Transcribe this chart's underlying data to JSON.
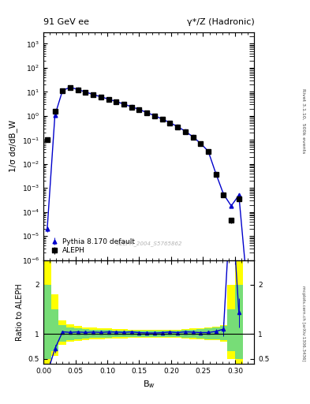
{
  "title_left": "91 GeV ee",
  "title_right": "γ*/Z (Hadronic)",
  "ylabel_main": "1/σ dσ/dB_W",
  "ylabel_ratio": "Ratio to ALEPH",
  "xlabel": "B$_w$",
  "right_label_top": "Rivet 3.1.10,  500k events",
  "right_label_bottom": "mcplots.cern.ch [arXiv:1306.3436]",
  "watermark": "ALEPH_2004_S5765862",
  "aleph_x": [
    0.006,
    0.018,
    0.03,
    0.042,
    0.054,
    0.066,
    0.078,
    0.09,
    0.102,
    0.114,
    0.126,
    0.138,
    0.15,
    0.162,
    0.174,
    0.186,
    0.198,
    0.21,
    0.222,
    0.234,
    0.246,
    0.258,
    0.27,
    0.282,
    0.294,
    0.306
  ],
  "aleph_y": [
    0.1,
    1.5,
    11.0,
    15.0,
    12.0,
    9.5,
    7.5,
    6.0,
    4.8,
    3.8,
    3.0,
    2.3,
    1.8,
    1.35,
    1.0,
    0.72,
    0.5,
    0.35,
    0.22,
    0.13,
    0.07,
    0.033,
    0.0038,
    0.0005,
    4.5e-05,
    0.00035
  ],
  "aleph_yerr": [
    0.015,
    0.12,
    0.5,
    0.5,
    0.4,
    0.3,
    0.25,
    0.2,
    0.15,
    0.12,
    0.1,
    0.08,
    0.06,
    0.05,
    0.04,
    0.03,
    0.02,
    0.015,
    0.01,
    0.007,
    0.005,
    0.003,
    0.0004,
    8e-05,
    1e-05,
    5e-05
  ],
  "pythia_x": [
    0.006,
    0.018,
    0.03,
    0.042,
    0.054,
    0.066,
    0.078,
    0.09,
    0.102,
    0.114,
    0.126,
    0.138,
    0.15,
    0.162,
    0.174,
    0.186,
    0.198,
    0.21,
    0.222,
    0.234,
    0.246,
    0.258,
    0.27,
    0.282,
    0.294,
    0.306,
    0.318
  ],
  "pythia_y": [
    2e-05,
    1.05,
    11.5,
    15.5,
    12.5,
    9.8,
    7.8,
    6.2,
    5.0,
    3.95,
    3.1,
    2.4,
    1.85,
    1.38,
    1.02,
    0.74,
    0.52,
    0.36,
    0.23,
    0.135,
    0.072,
    0.034,
    0.004,
    0.00055,
    0.00018,
    0.0005,
    1.5e-07
  ],
  "pythia_yerr": [
    5e-06,
    0.05,
    0.3,
    0.3,
    0.25,
    0.2,
    0.15,
    0.12,
    0.1,
    0.08,
    0.07,
    0.05,
    0.04,
    0.03,
    0.025,
    0.02,
    0.015,
    0.01,
    0.008,
    0.006,
    0.004,
    0.002,
    0.0003,
    6e-05,
    2e-05,
    7e-05,
    5e-08
  ],
  "ratio_x": [
    0.006,
    0.018,
    0.03,
    0.042,
    0.054,
    0.066,
    0.078,
    0.09,
    0.102,
    0.114,
    0.126,
    0.138,
    0.15,
    0.162,
    0.174,
    0.186,
    0.198,
    0.21,
    0.222,
    0.234,
    0.246,
    0.258,
    0.27,
    0.282,
    0.294,
    0.306
  ],
  "ratio_y": [
    0.2,
    0.7,
    1.045,
    1.033,
    1.042,
    1.032,
    1.04,
    1.033,
    1.042,
    1.039,
    1.033,
    1.043,
    1.028,
    1.022,
    1.02,
    1.028,
    1.04,
    1.029,
    1.045,
    1.038,
    1.029,
    1.03,
    1.053,
    1.1,
    3.9,
    1.43
  ],
  "ratio_yerr": [
    0.05,
    0.08,
    0.015,
    0.012,
    0.012,
    0.01,
    0.01,
    0.01,
    0.01,
    0.01,
    0.01,
    0.01,
    0.01,
    0.01,
    0.01,
    0.01,
    0.01,
    0.01,
    0.01,
    0.012,
    0.015,
    0.015,
    0.05,
    0.15,
    0.5,
    0.3
  ],
  "band_x_lo": [
    0.0,
    0.012,
    0.024,
    0.036,
    0.048,
    0.06,
    0.072,
    0.084,
    0.096,
    0.108,
    0.12,
    0.132,
    0.144,
    0.156,
    0.168,
    0.18,
    0.192,
    0.204,
    0.216,
    0.228,
    0.24,
    0.252,
    0.264,
    0.276,
    0.288,
    0.3
  ],
  "band_x_hi": [
    0.012,
    0.024,
    0.036,
    0.048,
    0.06,
    0.072,
    0.084,
    0.096,
    0.108,
    0.12,
    0.132,
    0.144,
    0.156,
    0.168,
    0.18,
    0.192,
    0.204,
    0.216,
    0.228,
    0.24,
    0.252,
    0.264,
    0.276,
    0.288,
    0.3,
    0.312
  ],
  "band_yellow_lo": [
    0.35,
    0.55,
    0.78,
    0.84,
    0.86,
    0.88,
    0.89,
    0.9,
    0.91,
    0.91,
    0.91,
    0.92,
    0.92,
    0.92,
    0.92,
    0.92,
    0.92,
    0.92,
    0.91,
    0.9,
    0.89,
    0.88,
    0.87,
    0.85,
    0.5,
    0.35
  ],
  "band_yellow_hi": [
    2.5,
    1.8,
    1.28,
    1.2,
    1.17,
    1.14,
    1.13,
    1.12,
    1.11,
    1.1,
    1.1,
    1.09,
    1.09,
    1.09,
    1.09,
    1.09,
    1.09,
    1.09,
    1.1,
    1.11,
    1.12,
    1.13,
    1.15,
    1.18,
    2.0,
    2.5
  ],
  "band_green_lo": [
    0.5,
    0.65,
    0.84,
    0.88,
    0.9,
    0.91,
    0.92,
    0.93,
    0.93,
    0.94,
    0.94,
    0.94,
    0.94,
    0.94,
    0.94,
    0.94,
    0.94,
    0.94,
    0.93,
    0.92,
    0.91,
    0.9,
    0.89,
    0.87,
    0.65,
    0.5
  ],
  "band_green_hi": [
    2.0,
    1.5,
    1.18,
    1.14,
    1.12,
    1.1,
    1.09,
    1.08,
    1.08,
    1.07,
    1.07,
    1.07,
    1.07,
    1.07,
    1.07,
    1.07,
    1.07,
    1.07,
    1.08,
    1.09,
    1.1,
    1.11,
    1.13,
    1.16,
    1.5,
    2.0
  ],
  "xlim": [
    0.0,
    0.33
  ],
  "ylim_main": [
    1e-06,
    3000.0
  ],
  "ylim_ratio": [
    0.4,
    2.5
  ],
  "ratio_yticks": [
    0.5,
    1.0,
    2.0
  ],
  "line_color": "#0000cc",
  "marker_color": "black",
  "bg_color": "#ffffff"
}
